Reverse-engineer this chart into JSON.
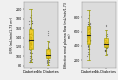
{
  "left_plot": {
    "ylabel": "GFR (mL/min/1.73 m²)",
    "xlabel_groups": [
      "Diabetes",
      "No Diabetes"
    ],
    "ylim": [
      75,
      215
    ],
    "yticks": [
      80,
      100,
      120,
      140,
      160,
      180,
      200
    ],
    "diabetes_median": 135,
    "diabetes_q1": 115,
    "diabetes_q3": 158,
    "diabetes_whisker_low": 88,
    "diabetes_whisker_high": 200,
    "no_diabetes_median": 102,
    "no_diabetes_q1": 96,
    "no_diabetes_q3": 115,
    "no_diabetes_whisker_low": 82,
    "no_diabetes_whisker_high": 133,
    "no_diabetes_outliers_high": [
      145,
      150,
      155
    ]
  },
  "right_plot": {
    "ylabel": "Effective renal plasma flow (mL/min/1.73 m²)",
    "xlabel_groups": [
      "Diabetes",
      "No-Diabetes"
    ],
    "ylim": [
      90,
      1010
    ],
    "yticks": [
      200,
      400,
      600,
      800
    ],
    "diabetes_median": 550,
    "diabetes_q1": 430,
    "diabetes_q3": 680,
    "diabetes_whisker_low": 200,
    "diabetes_whisker_high": 900,
    "no_diabetes_median": 430,
    "no_diabetes_q1": 380,
    "no_diabetes_q3": 510,
    "no_diabetes_whisker_low": 270,
    "no_diabetes_whisker_high": 620,
    "no_diabetes_outliers_high": [
      680,
      700
    ]
  },
  "box_color": "#F5C800",
  "box_edge_color": "#999900",
  "dot_color": "#444444",
  "median_color": "#222222",
  "bg_color": "#DCDCDC",
  "fig_bg": "#F0F0F0",
  "dot_alpha": 0.55,
  "dot_size": 0.8,
  "label_fontsize": 2.5,
  "tick_fontsize": 2.3,
  "ylabel_fontsize": 2.3
}
